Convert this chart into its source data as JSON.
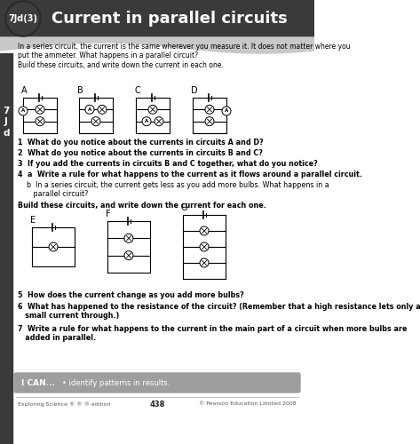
{
  "title": "Current in parallel circuits",
  "badge": "7Jd(3)",
  "bg_color": "#f0f0f0",
  "header_bg": "#2d2d2d",
  "header_text_color": "#ffffff",
  "body_bg": "#ffffff",
  "intro_text": "In a series circuit, the current is the same wherever you measure it. It does not matter where you\nput the ammeter. What happens in a parallel circuit?\nBuild these circuits, and write down the current in each one.",
  "circuits_top_labels": [
    "A",
    "B",
    "C",
    "D"
  ],
  "circuits_bottom_labels": [
    "E",
    "F",
    "G"
  ],
  "questions": [
    "1  What do you notice about the currents in circuits A and D?",
    "2  What do you notice about the currents in circuits B and C?",
    "3  If you add the currents in circuits B and C together, what do you notice?",
    "4  a  Write a rule for what happens to the current as it flows around a parallel circuit.",
    "    b  In a series circuit, the current gets less as you add more bulbs. What happens in a parallel\n       circuit?",
    "Build these circuits, and write down the current for each one."
  ],
  "questions2": [
    "5  How does the current change as you add more bulbs?",
    "6  What has happened to the resistance of the circuit? (Remember that a high resistance lets only a\n   small current through.)",
    "7  Write a rule for what happens to the current in the main part of a circuit when more bulbs are\n   added in parallel."
  ],
  "ican_text": "I CAN...   • identify patterns in results.",
  "footer_left": "Exploring Science ® ® ® edition",
  "footer_center": "438",
  "footer_right": "© Pearson Education Limited 2008",
  "sidebar_color": "#3a3a3a",
  "sidebar_label": "7\nJ\nd",
  "ican_bg": "#9e9e9e",
  "gray_strip_color": "#d0d0d0"
}
